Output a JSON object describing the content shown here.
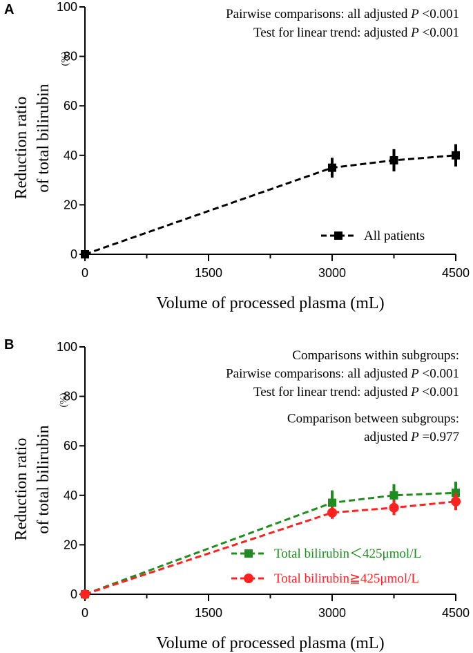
{
  "chart_data": [
    {
      "panel": "A",
      "type": "line",
      "xlabel": "Volume of processed plasma (mL)",
      "ylabel_line1": "Reduction ratio",
      "ylabel_line2": "of total bilirubin",
      "ylabel_unit": "(%)",
      "xlim": [
        0,
        4500
      ],
      "ylim": [
        0,
        100
      ],
      "xticks": [
        0,
        1500,
        3000,
        4500
      ],
      "xticks_minor": [
        750,
        2250,
        3750
      ],
      "yticks": [
        0,
        20,
        40,
        60,
        80,
        100
      ],
      "annotations": [
        {
          "text": "Pairwise comparisons: all adjusted ",
          "italic": "P",
          "tail": " <0.001"
        },
        {
          "text": "Test for linear trend: adjusted ",
          "italic": "P",
          "tail": " <0.001"
        }
      ],
      "legend_position": "bottom-right",
      "series": [
        {
          "name": "All patients",
          "color": "#000000",
          "marker": "square",
          "x": [
            0,
            3000,
            3750,
            4500
          ],
          "y": [
            0,
            35,
            38,
            40
          ],
          "err": [
            0,
            4,
            4.5,
            4.5
          ]
        }
      ]
    },
    {
      "panel": "B",
      "type": "line",
      "xlabel": "Volume of processed plasma (mL)",
      "ylabel_line1": "Reduction ratio",
      "ylabel_line2": "of total bilirubin",
      "ylabel_unit": "(%)",
      "xlim": [
        0,
        4500
      ],
      "ylim": [
        0,
        100
      ],
      "xticks": [
        0,
        1500,
        3000,
        4500
      ],
      "xticks_minor": [
        750,
        2250,
        3750
      ],
      "yticks": [
        0,
        20,
        40,
        60,
        80,
        100
      ],
      "annotations": [
        {
          "text": "Comparisons within subgroups:",
          "italic": "",
          "tail": ""
        },
        {
          "text": "Pairwise comparisons: all adjusted ",
          "italic": "P",
          "tail": " <0.001"
        },
        {
          "text": "Test for linear trend: adjusted ",
          "italic": "P",
          "tail": " <0.001"
        },
        {
          "text": "Comparison between subgroups:",
          "italic": "",
          "tail": ""
        },
        {
          "text": "adjusted ",
          "italic": "P",
          "tail": " =0.977"
        }
      ],
      "legend_position": "bottom-right",
      "series": [
        {
          "name": "Total bilirubin＜425μmol/L",
          "color": "#1e8c1e",
          "marker": "square",
          "x": [
            0,
            3000,
            3750,
            4500
          ],
          "y": [
            0,
            37,
            40,
            41
          ],
          "err": [
            0,
            5,
            4.5,
            4.5
          ]
        },
        {
          "name": "Total bilirubin≧425μmol/L",
          "color": "#ff2020",
          "marker": "circle",
          "x": [
            0,
            3000,
            3750,
            4500
          ],
          "y": [
            0,
            33,
            35,
            37.5
          ],
          "err": [
            0,
            2.5,
            3,
            3.5
          ]
        }
      ]
    }
  ]
}
